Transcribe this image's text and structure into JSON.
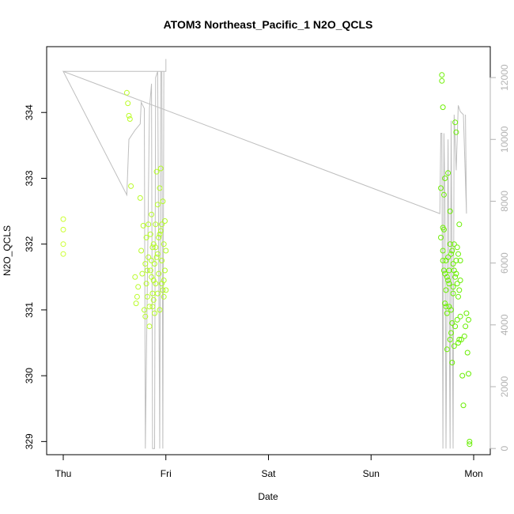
{
  "chart_data": {
    "type": "scatter",
    "title": "ATOM3 Northeast_Pacific_1 N2O_QCLS",
    "xlabel": "Date",
    "ylabel": "N2O_QCLS",
    "x_ticks": [
      "Thu",
      "Fri",
      "Sat",
      "Sun",
      "Mon"
    ],
    "xlim_days": [
      0,
      4.0
    ],
    "ylim": [
      328.8,
      335.0
    ],
    "y_ticks": [
      329,
      330,
      331,
      332,
      333,
      334
    ],
    "y2lim": [
      -200,
      13000
    ],
    "y2_ticks": [
      0,
      2000,
      4000,
      6000,
      8000,
      10000,
      12000
    ],
    "grid": false,
    "colors": {
      "points_range": [
        "#ccff33",
        "#66ee00"
      ],
      "altitude_line": "#bebebe",
      "right_axis": "#b3b3b3"
    },
    "series": [
      {
        "name": "N2O_QCLS",
        "kind": "points",
        "points": [
          [
            0.0,
            332.38
          ],
          [
            0.0,
            332.22
          ],
          [
            0.0,
            332.0
          ],
          [
            0.0,
            331.85
          ],
          [
            0.62,
            334.3
          ],
          [
            0.63,
            334.14
          ],
          [
            0.64,
            333.95
          ],
          [
            0.65,
            333.9
          ],
          [
            0.66,
            332.88
          ],
          [
            0.7,
            331.5
          ],
          [
            0.71,
            331.1
          ],
          [
            0.72,
            331.2
          ],
          [
            0.73,
            331.35
          ],
          [
            0.75,
            332.7
          ],
          [
            0.76,
            331.9
          ],
          [
            0.77,
            331.55
          ],
          [
            0.78,
            332.28
          ],
          [
            0.79,
            331.0
          ],
          [
            0.8,
            330.9
          ],
          [
            0.8,
            331.7
          ],
          [
            0.81,
            332.1
          ],
          [
            0.81,
            331.4
          ],
          [
            0.82,
            331.6
          ],
          [
            0.82,
            331.2
          ],
          [
            0.83,
            332.3
          ],
          [
            0.83,
            331.8
          ],
          [
            0.84,
            331.05
          ],
          [
            0.84,
            330.75
          ],
          [
            0.85,
            331.6
          ],
          [
            0.85,
            332.15
          ],
          [
            0.86,
            331.5
          ],
          [
            0.86,
            332.45
          ],
          [
            0.87,
            331.25
          ],
          [
            0.87,
            331.95
          ],
          [
            0.88,
            331.15
          ],
          [
            0.88,
            332.0
          ],
          [
            0.89,
            330.95
          ],
          [
            0.89,
            331.7
          ],
          [
            0.9,
            332.3
          ],
          [
            0.9,
            331.4
          ],
          [
            0.91,
            331.8
          ],
          [
            0.91,
            333.1
          ],
          [
            0.92,
            332.6
          ],
          [
            0.92,
            331.25
          ],
          [
            0.93,
            332.1
          ],
          [
            0.93,
            331.55
          ],
          [
            0.94,
            332.85
          ],
          [
            0.94,
            331.0
          ],
          [
            0.95,
            333.15
          ],
          [
            0.95,
            332.2
          ],
          [
            0.96,
            331.75
          ],
          [
            0.96,
            331.4
          ],
          [
            0.97,
            332.65
          ],
          [
            0.97,
            331.3
          ],
          [
            0.98,
            332.0
          ],
          [
            0.98,
            331.2
          ],
          [
            0.99,
            331.6
          ],
          [
            0.99,
            332.35
          ],
          [
            1.0,
            331.3
          ],
          [
            1.0,
            331.9
          ],
          [
            0.86,
            331.75
          ],
          [
            0.87,
            331.05
          ],
          [
            0.88,
            331.45
          ],
          [
            0.9,
            331.95
          ],
          [
            0.92,
            331.85
          ],
          [
            0.94,
            332.15
          ],
          [
            0.96,
            332.3
          ],
          [
            0.98,
            331.45
          ],
          [
            3.69,
            334.57
          ],
          [
            3.69,
            334.48
          ],
          [
            3.7,
            334.08
          ],
          [
            3.68,
            332.85
          ],
          [
            3.68,
            332.1
          ],
          [
            3.7,
            331.9
          ],
          [
            3.71,
            332.75
          ],
          [
            3.71,
            332.22
          ],
          [
            3.72,
            333.0
          ],
          [
            3.72,
            331.55
          ],
          [
            3.73,
            331.3
          ],
          [
            3.73,
            331.05
          ],
          [
            3.74,
            330.95
          ],
          [
            3.74,
            330.4
          ],
          [
            3.75,
            333.08
          ],
          [
            3.75,
            331.8
          ],
          [
            3.76,
            331.6
          ],
          [
            3.76,
            331.4
          ],
          [
            3.77,
            330.55
          ],
          [
            3.77,
            332.5
          ],
          [
            3.78,
            331.0
          ],
          [
            3.78,
            330.65
          ],
          [
            3.79,
            331.9
          ],
          [
            3.79,
            330.2
          ],
          [
            3.8,
            331.7
          ],
          [
            3.8,
            331.25
          ],
          [
            3.81,
            332.0
          ],
          [
            3.81,
            330.45
          ],
          [
            3.82,
            331.5
          ],
          [
            3.82,
            333.85
          ],
          [
            3.83,
            333.7
          ],
          [
            3.83,
            331.75
          ],
          [
            3.84,
            331.4
          ],
          [
            3.84,
            330.85
          ],
          [
            3.85,
            331.2
          ],
          [
            3.85,
            330.5
          ],
          [
            3.86,
            332.3
          ],
          [
            3.86,
            330.55
          ],
          [
            3.87,
            331.75
          ],
          [
            3.87,
            330.9
          ],
          [
            3.88,
            330.55
          ],
          [
            3.89,
            330.0
          ],
          [
            3.9,
            329.55
          ],
          [
            3.91,
            330.6
          ],
          [
            3.92,
            330.75
          ],
          [
            3.93,
            330.95
          ],
          [
            3.94,
            330.35
          ],
          [
            3.95,
            330.85
          ],
          [
            3.95,
            330.03
          ],
          [
            3.96,
            329.0
          ],
          [
            3.96,
            328.96
          ],
          [
            3.7,
            331.75
          ],
          [
            3.72,
            331.1
          ],
          [
            3.74,
            331.5
          ],
          [
            3.76,
            331.05
          ],
          [
            3.78,
            331.85
          ],
          [
            3.8,
            331.35
          ],
          [
            3.82,
            330.75
          ],
          [
            3.84,
            331.95
          ],
          [
            3.86,
            331.3
          ],
          [
            3.7,
            332.25
          ],
          [
            3.71,
            331.6
          ],
          [
            3.73,
            331.75
          ],
          [
            3.75,
            331.45
          ],
          [
            3.77,
            332.0
          ],
          [
            3.79,
            330.8
          ],
          [
            3.81,
            331.6
          ],
          [
            3.83,
            331.55
          ],
          [
            3.85,
            331.85
          ],
          [
            3.87,
            331.45
          ]
        ]
      },
      {
        "name": "altitude",
        "kind": "line",
        "axis": "right",
        "points": [
          [
            0.0,
            12200
          ],
          [
            1.0,
            12200
          ],
          [
            1.0,
            12600
          ],
          [
            1.0,
            12200
          ],
          [
            0.98,
            12200
          ],
          [
            0.97,
            0
          ],
          [
            0.96,
            12200
          ],
          [
            0.95,
            12200
          ],
          [
            0.94,
            0
          ],
          [
            0.92,
            12200
          ],
          [
            0.9,
            12000
          ],
          [
            0.89,
            0
          ],
          [
            0.87,
            0
          ],
          [
            0.86,
            11800
          ],
          [
            0.84,
            11000
          ],
          [
            0.8,
            0
          ],
          [
            0.79,
            11000
          ],
          [
            0.76,
            11200
          ],
          [
            0.75,
            10500
          ],
          [
            0.7,
            10300
          ],
          [
            0.64,
            10000
          ],
          [
            0.62,
            8200
          ],
          [
            0.0,
            12200
          ],
          [
            3.67,
            7600
          ],
          [
            3.68,
            10200
          ],
          [
            3.69,
            10200
          ],
          [
            3.7,
            0
          ],
          [
            3.71,
            10200
          ],
          [
            3.72,
            8000
          ],
          [
            3.73,
            0
          ],
          [
            3.75,
            10000
          ],
          [
            3.77,
            0
          ],
          [
            3.78,
            10600
          ],
          [
            3.8,
            0
          ],
          [
            3.81,
            10800
          ],
          [
            3.83,
            9000
          ],
          [
            3.85,
            11100
          ],
          [
            3.87,
            10900
          ],
          [
            3.9,
            10800
          ],
          [
            3.93,
            7600
          ],
          [
            3.92,
            10800
          ]
        ]
      }
    ]
  }
}
